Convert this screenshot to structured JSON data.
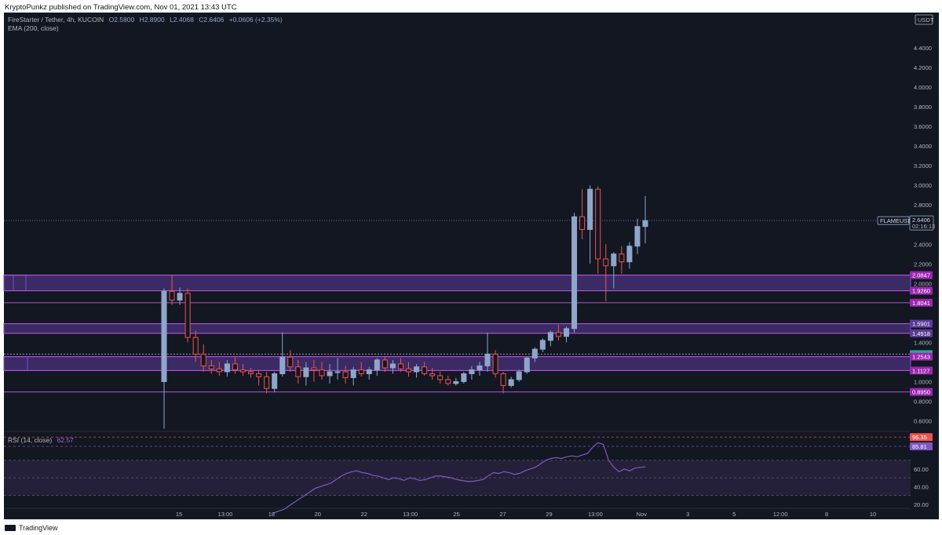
{
  "header": {
    "published": "KryptoPunkz published on TradingView.com, Nov 01, 2021 13:43 UTC"
  },
  "legend": {
    "symbol": "FireStarter / Tether, 4h, KUCOIN",
    "open": "O2.5800",
    "high": "H2.8900",
    "low": "L2.4068",
    "close": "C2.6406",
    "change": "+0.0606 (+2.35%)",
    "ema": "EMA (200, close)",
    "rsi_label": "RSI (14, close)",
    "rsi_value": "62.57"
  },
  "footer": {
    "brand": "TradingView"
  },
  "colors": {
    "background": "#131722",
    "up_candle": "#8ea6c9",
    "down_candle": "#ef5350",
    "zone_fill": "#5b3c9a",
    "zone_line": "#9c27b0",
    "rsi_line": "#7e57c2",
    "rsi_band": "#2a2340"
  },
  "chart_data": {
    "type": "candlestick",
    "symbol": "FLAMEUSDT",
    "timeframe": "4h",
    "exchange": "KUCOIN",
    "currency_label": "USDT",
    "price_axis": {
      "ticks": [
        "4.4000",
        "4.2000",
        "4.0000",
        "3.8000",
        "3.6000",
        "3.4000",
        "3.2000",
        "3.0000",
        "2.8000",
        "2.4000",
        "2.2000",
        "2.0000",
        "1.4000",
        "1.0000",
        "0.8000",
        "0.6000"
      ],
      "tick_values": [
        4.4,
        4.2,
        4.0,
        3.8,
        3.6,
        3.4,
        3.2,
        3.0,
        2.8,
        2.4,
        2.2,
        2.0,
        1.4,
        1.0,
        0.8,
        0.6
      ],
      "range": [
        0.5,
        4.6
      ]
    },
    "time_axis": {
      "labels": [
        "15",
        "13:00",
        "18",
        "20",
        "22",
        "13:00",
        "25",
        "27",
        "29",
        "13:00",
        "Nov",
        "3",
        "5",
        "12:00",
        "8",
        "10"
      ],
      "positions": [
        0,
        3,
        6,
        9,
        12,
        15,
        18,
        21,
        24,
        27,
        30,
        33,
        36,
        39,
        42,
        45
      ]
    },
    "current_price": {
      "label": "FLAMEUSDT",
      "value": "2.6406",
      "countdown": "02:16:13",
      "price": 2.6406
    },
    "levels": [
      {
        "label": "2.0847",
        "value": 2.0847,
        "color": "#9c27b0"
      },
      {
        "label": "1.9260",
        "value": 1.926,
        "color": "#9c27b0"
      },
      {
        "label": "1.8041",
        "value": 1.8041,
        "color": "#9c27b0"
      },
      {
        "label": "1.5901",
        "value": 1.5901,
        "color": "#5b3c9a"
      },
      {
        "label": "1.4918",
        "value": 1.4918,
        "color": "#5b3c9a"
      },
      {
        "label": "1.2805",
        "value": 1.2805,
        "color": "#26a69a"
      },
      {
        "label": "1.2543",
        "value": 1.2543,
        "color": "#9c27b0"
      },
      {
        "label": "1.1127",
        "value": 1.1127,
        "color": "#9c27b0"
      },
      {
        "label": "0.8950",
        "value": 0.895,
        "color": "#9c27b0"
      }
    ],
    "zones": [
      {
        "top": 2.0847,
        "bottom": 1.926
      },
      {
        "top": 1.5901,
        "bottom": 1.4918
      },
      {
        "top": 1.2543,
        "bottom": 1.1127
      }
    ],
    "candles_ohlc": [
      [
        1.0,
        1.95,
        0.52,
        1.92
      ],
      [
        1.92,
        2.09,
        1.78,
        1.83
      ],
      [
        1.83,
        1.96,
        1.78,
        1.9
      ],
      [
        1.9,
        1.95,
        1.4,
        1.45
      ],
      [
        1.45,
        1.52,
        1.2,
        1.28
      ],
      [
        1.28,
        1.38,
        1.1,
        1.16
      ],
      [
        1.16,
        1.22,
        1.08,
        1.13
      ],
      [
        1.13,
        1.2,
        1.06,
        1.1
      ],
      [
        1.1,
        1.22,
        1.05,
        1.18
      ],
      [
        1.18,
        1.26,
        1.08,
        1.12
      ],
      [
        1.12,
        1.18,
        1.06,
        1.1
      ],
      [
        1.1,
        1.14,
        1.04,
        1.08
      ],
      [
        1.08,
        1.12,
        0.96,
        1.05
      ],
      [
        1.05,
        1.1,
        0.88,
        0.93
      ],
      [
        0.93,
        1.1,
        0.89,
        1.08
      ],
      [
        1.08,
        1.5,
        1.05,
        1.25
      ],
      [
        1.25,
        1.32,
        1.1,
        1.15
      ],
      [
        1.15,
        1.22,
        0.98,
        1.05
      ],
      [
        1.05,
        1.2,
        0.96,
        1.14
      ],
      [
        1.14,
        1.22,
        1.0,
        1.12
      ],
      [
        1.12,
        1.2,
        1.02,
        1.06
      ],
      [
        1.06,
        1.18,
        0.98,
        1.1
      ],
      [
        1.1,
        1.24,
        1.02,
        1.1
      ],
      [
        1.1,
        1.16,
        0.98,
        1.04
      ],
      [
        1.04,
        1.15,
        0.96,
        1.12
      ],
      [
        1.12,
        1.2,
        1.05,
        1.08
      ],
      [
        1.08,
        1.15,
        1.02,
        1.12
      ],
      [
        1.12,
        1.24,
        1.06,
        1.22
      ],
      [
        1.22,
        1.26,
        1.1,
        1.14
      ],
      [
        1.14,
        1.22,
        1.08,
        1.18
      ],
      [
        1.18,
        1.24,
        1.1,
        1.13
      ],
      [
        1.13,
        1.2,
        1.05,
        1.1
      ],
      [
        1.1,
        1.18,
        1.04,
        1.15
      ],
      [
        1.15,
        1.2,
        1.06,
        1.08
      ],
      [
        1.08,
        1.14,
        1.02,
        1.06
      ],
      [
        1.06,
        1.1,
        0.98,
        1.02
      ],
      [
        1.02,
        1.06,
        0.96,
        0.98
      ],
      [
        0.98,
        1.04,
        0.96,
        1.0
      ],
      [
        1.0,
        1.1,
        0.98,
        1.08
      ],
      [
        1.08,
        1.16,
        1.02,
        1.12
      ],
      [
        1.12,
        1.2,
        1.06,
        1.16
      ],
      [
        1.16,
        1.5,
        1.1,
        1.28
      ],
      [
        1.28,
        1.32,
        1.04,
        1.08
      ],
      [
        1.08,
        1.1,
        0.88,
        0.96
      ],
      [
        0.96,
        1.05,
        0.94,
        1.02
      ],
      [
        1.02,
        1.12,
        1.0,
        1.1
      ],
      [
        1.1,
        1.25,
        1.08,
        1.24
      ],
      [
        1.24,
        1.35,
        1.2,
        1.33
      ],
      [
        1.33,
        1.44,
        1.3,
        1.42
      ],
      [
        1.42,
        1.52,
        1.36,
        1.5
      ],
      [
        1.5,
        1.58,
        1.42,
        1.46
      ],
      [
        1.46,
        1.56,
        1.4,
        1.54
      ],
      [
        1.54,
        2.72,
        1.5,
        2.68
      ],
      [
        2.68,
        2.96,
        2.45,
        2.55
      ],
      [
        2.55,
        3.0,
        2.2,
        2.96
      ],
      [
        2.96,
        2.99,
        2.1,
        2.25
      ],
      [
        2.25,
        2.4,
        1.82,
        2.18
      ],
      [
        2.18,
        2.32,
        1.95,
        2.3
      ],
      [
        2.3,
        2.38,
        2.1,
        2.22
      ],
      [
        2.22,
        2.42,
        2.15,
        2.38
      ],
      [
        2.38,
        2.66,
        2.3,
        2.58
      ],
      [
        2.58,
        2.89,
        2.4068,
        2.6406
      ]
    ],
    "rsi": {
      "label": "RSI (14, close)",
      "value": 62.57,
      "levels": [
        {
          "label": "96.35",
          "value": 96.35,
          "color": "#ef5350"
        },
        {
          "label": "85.81",
          "value": 85.81,
          "color": "#7e57c2"
        }
      ],
      "ticks": [
        "60.00",
        "40.00",
        "20.00"
      ],
      "tick_values": [
        60,
        40,
        20
      ],
      "range": [
        18,
        101
      ],
      "series": [
        10,
        12,
        14,
        18,
        22,
        26,
        30,
        34,
        38,
        40,
        42,
        44,
        48,
        52,
        55,
        57,
        58,
        56,
        55,
        53,
        52,
        50,
        48,
        50,
        49,
        47,
        50,
        49,
        47,
        48,
        50,
        52,
        52,
        51,
        50,
        48,
        47,
        46,
        46,
        47,
        48,
        52,
        56,
        55,
        57,
        56,
        54,
        55,
        58,
        60,
        62,
        66,
        70,
        72,
        73,
        72,
        74,
        75,
        74,
        76,
        78,
        85,
        90,
        88,
        70,
        62,
        57,
        60,
        58,
        61,
        62,
        62.57
      ]
    }
  }
}
